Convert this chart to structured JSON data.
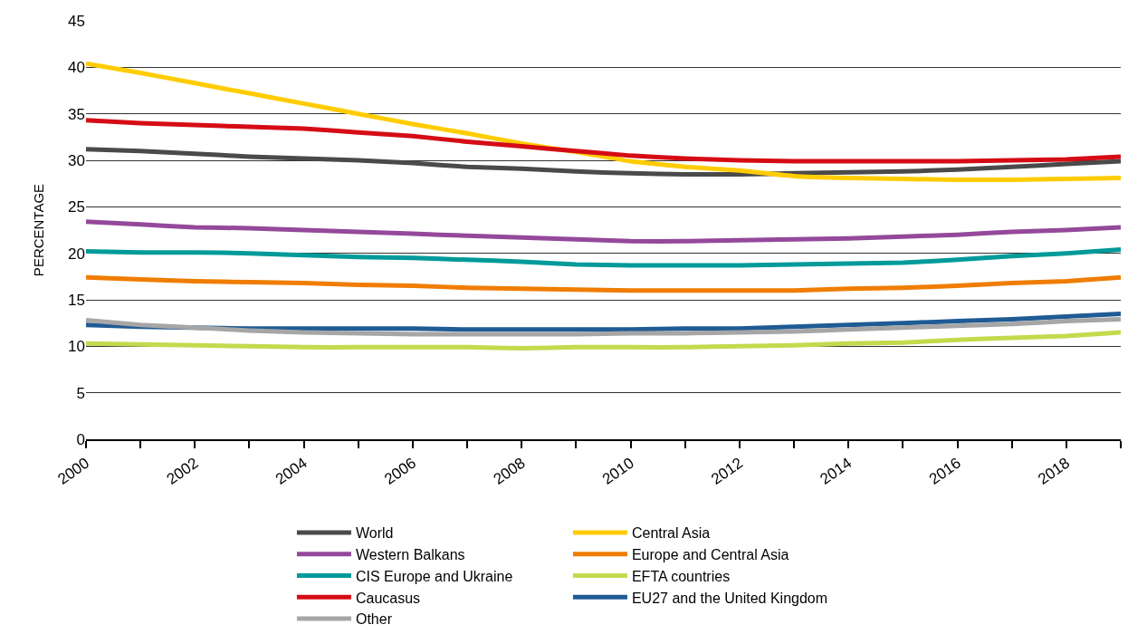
{
  "chart_data": {
    "type": "line",
    "ylabel": "PERCENTAGE",
    "x": [
      2000,
      2001,
      2002,
      2003,
      2004,
      2005,
      2006,
      2007,
      2008,
      2009,
      2010,
      2011,
      2012,
      2013,
      2014,
      2015,
      2016,
      2017,
      2018,
      2019
    ],
    "xlim": [
      2000,
      2019
    ],
    "xticks": [
      2000,
      {
        "value": 2001,
        "label": null
      },
      2002,
      {
        "value": 2003,
        "label": null
      },
      2004,
      {
        "value": 2005,
        "label": null
      },
      2006,
      {
        "value": 2007,
        "label": null
      },
      2008,
      {
        "value": 2009,
        "label": null
      },
      2010,
      {
        "value": 2011,
        "label": null
      },
      2012,
      {
        "value": 2013,
        "label": null
      },
      2014,
      {
        "value": 2015,
        "label": null
      },
      2016,
      {
        "value": 2017,
        "label": null
      },
      2018,
      {
        "value": 2019,
        "label": null
      }
    ],
    "ylim": [
      0,
      45
    ],
    "yticks": [
      0,
      5,
      10,
      15,
      20,
      25,
      30,
      35,
      40,
      45
    ],
    "grid": "y",
    "legend": "bottom",
    "marker": "none",
    "line_style": "solid",
    "series": [
      {
        "name": "World",
        "color": "#4a4a4a",
        "values": [
          31.2,
          31.0,
          30.7,
          30.4,
          30.2,
          30.0,
          29.7,
          29.3,
          29.1,
          28.8,
          28.6,
          28.5,
          28.5,
          28.6,
          28.7,
          28.8,
          29.0,
          29.3,
          29.6,
          29.9
        ]
      },
      {
        "name": "Central Asia",
        "color": "#ffcc00",
        "values": [
          40.4,
          39.4,
          38.3,
          37.2,
          36.1,
          35.0,
          33.9,
          32.9,
          31.8,
          30.9,
          29.9,
          29.3,
          28.9,
          28.3,
          28.1,
          28.0,
          27.9,
          27.9,
          28.0,
          28.1
        ]
      },
      {
        "name": "Western Balkans",
        "color": "#94499b",
        "values": [
          23.4,
          23.1,
          22.8,
          22.7,
          22.5,
          22.3,
          22.1,
          21.9,
          21.7,
          21.5,
          21.3,
          21.3,
          21.4,
          21.5,
          21.6,
          21.8,
          22.0,
          22.3,
          22.5,
          22.8
        ]
      },
      {
        "name": "Europe and Central Asia",
        "color": "#ef7d00",
        "values": [
          17.4,
          17.2,
          17.0,
          16.9,
          16.8,
          16.6,
          16.5,
          16.3,
          16.2,
          16.1,
          16.0,
          16.0,
          16.0,
          16.0,
          16.2,
          16.3,
          16.5,
          16.8,
          17.0,
          17.4
        ]
      },
      {
        "name": "CIS Europe and Ukraine",
        "color": "#009a9a",
        "values": [
          20.2,
          20.1,
          20.1,
          20.0,
          19.8,
          19.6,
          19.5,
          19.3,
          19.1,
          18.8,
          18.7,
          18.7,
          18.7,
          18.8,
          18.9,
          19.0,
          19.3,
          19.7,
          20.0,
          20.4
        ]
      },
      {
        "name": "EFTA countries",
        "color": "#c5d94e",
        "values": [
          10.3,
          10.2,
          10.1,
          10.0,
          9.9,
          9.9,
          9.9,
          9.9,
          9.8,
          9.9,
          9.9,
          9.9,
          10.0,
          10.1,
          10.3,
          10.4,
          10.7,
          10.9,
          11.1,
          11.5
        ]
      },
      {
        "name": "Caucasus",
        "color": "#d50c15",
        "values": [
          34.3,
          34.0,
          33.8,
          33.6,
          33.4,
          33.0,
          32.6,
          32.0,
          31.5,
          31.0,
          30.5,
          30.2,
          30.0,
          29.9,
          29.9,
          29.9,
          29.9,
          30.0,
          30.1,
          30.4
        ]
      },
      {
        "name": "EU27 and the United Kingdom",
        "color": "#1f5b94",
        "values": [
          12.3,
          12.1,
          12.0,
          11.9,
          11.9,
          11.9,
          11.9,
          11.8,
          11.8,
          11.8,
          11.8,
          11.9,
          11.9,
          12.1,
          12.3,
          12.5,
          12.7,
          12.9,
          13.2,
          13.5
        ]
      },
      {
        "name": "Other",
        "color": "#a6a6a6",
        "values": [
          12.8,
          12.3,
          12.0,
          11.7,
          11.5,
          11.4,
          11.3,
          11.3,
          11.3,
          11.3,
          11.4,
          11.4,
          11.5,
          11.6,
          11.8,
          12.0,
          12.2,
          12.4,
          12.7,
          12.9
        ]
      }
    ]
  }
}
